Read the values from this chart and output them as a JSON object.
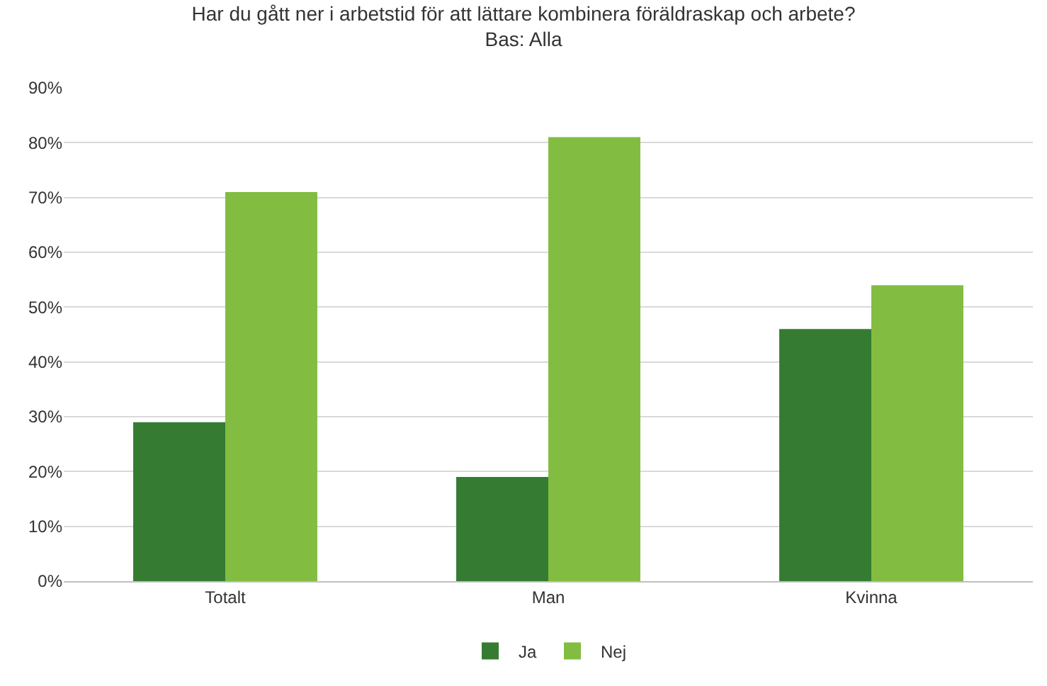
{
  "chart_data": {
    "type": "bar",
    "title": "Har du gått ner i arbetstid för att lättare kombinera föräldraskap och arbete?",
    "subtitle": "Bas: Alla",
    "categories": [
      "Totalt",
      "Man",
      "Kvinna"
    ],
    "series": [
      {
        "name": "Ja",
        "color": "#357c32",
        "values": [
          29,
          19,
          46
        ]
      },
      {
        "name": "Nej",
        "color": "#82bd41",
        "values": [
          71,
          81,
          54
        ]
      }
    ],
    "ylim": [
      0,
      90
    ],
    "yticks": [
      {
        "value": 0,
        "label": "0%"
      },
      {
        "value": 10,
        "label": "10%"
      },
      {
        "value": 20,
        "label": "20%"
      },
      {
        "value": 30,
        "label": "30%"
      },
      {
        "value": 40,
        "label": "40%"
      },
      {
        "value": 50,
        "label": "50%"
      },
      {
        "value": 60,
        "label": "60%"
      },
      {
        "value": 70,
        "label": "70%"
      },
      {
        "value": 80,
        "label": "80%"
      },
      {
        "value": 90,
        "label": "90%"
      }
    ],
    "grid": "y",
    "legend": "bottom"
  }
}
